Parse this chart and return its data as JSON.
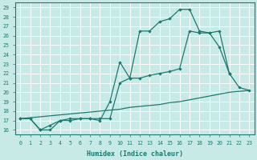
{
  "xlabel": "Humidex (Indice chaleur)",
  "bg_color": "#c8eae7",
  "grid_color": "#b0d8d4",
  "line_color": "#1a7a6e",
  "xlim": [
    -0.5,
    23.5
  ],
  "ylim": [
    15.5,
    29.5
  ],
  "xticks": [
    0,
    1,
    2,
    3,
    4,
    5,
    6,
    7,
    8,
    9,
    10,
    11,
    12,
    13,
    14,
    15,
    16,
    17,
    18,
    19,
    20,
    21,
    22,
    23
  ],
  "yticks": [
    16,
    17,
    18,
    19,
    20,
    21,
    22,
    23,
    24,
    25,
    26,
    27,
    28,
    29
  ],
  "curve1_x": [
    0,
    1,
    2,
    3,
    4,
    5,
    6,
    7,
    8,
    9,
    10,
    11,
    12,
    13,
    14,
    15,
    16,
    17,
    18,
    19,
    20,
    21
  ],
  "curve1_y": [
    17.2,
    17.2,
    16.0,
    16.0,
    17.0,
    17.0,
    17.2,
    17.2,
    17.0,
    19.0,
    23.2,
    21.5,
    26.5,
    26.5,
    27.5,
    27.8,
    28.8,
    28.8,
    26.5,
    26.3,
    24.8,
    22.0
  ],
  "curve2_x": [
    0,
    1,
    2,
    3,
    4,
    5,
    6,
    7,
    8,
    9,
    10,
    11,
    12,
    13,
    14,
    15,
    16,
    17,
    18,
    19,
    20,
    21,
    22,
    23
  ],
  "curve2_y": [
    17.2,
    17.2,
    16.0,
    16.5,
    17.0,
    17.2,
    17.2,
    17.2,
    17.2,
    17.2,
    21.0,
    21.5,
    21.5,
    21.8,
    22.0,
    22.2,
    22.5,
    26.5,
    26.3,
    26.3,
    26.5,
    22.0,
    20.5,
    20.2
  ],
  "curve3_x": [
    0,
    1,
    2,
    3,
    4,
    5,
    6,
    7,
    8,
    9,
    10,
    11,
    12,
    13,
    14,
    15,
    16,
    17,
    18,
    19,
    20,
    21,
    22,
    23
  ],
  "curve3_y": [
    17.2,
    17.3,
    17.4,
    17.5,
    17.6,
    17.7,
    17.8,
    17.9,
    18.0,
    18.1,
    18.2,
    18.4,
    18.5,
    18.6,
    18.7,
    18.9,
    19.0,
    19.2,
    19.4,
    19.6,
    19.8,
    20.0,
    20.1,
    20.2
  ]
}
